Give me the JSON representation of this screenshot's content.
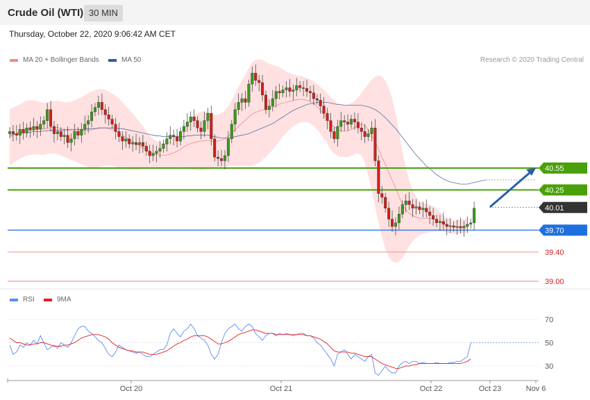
{
  "header": {
    "title": "Crude Oil (WTI)",
    "timeframe": "30 MIN"
  },
  "date_text": "Thursday, October 22, 2020 9:06:42 AM CET",
  "copyright": "Research © 2020 Trading Central",
  "colors": {
    "support_resistance_green": "#4aa00a",
    "current_price": "#333333",
    "pivot_blue": "#1f6fe0",
    "red_level": "#f29a9a",
    "bollinger_fill": "#ffd9d9",
    "ma20": "#f08a8a",
    "ma50": "#5a6fa8",
    "rsi": "#5b8def",
    "rsi_ma": "#e02020",
    "candle_up": "#3a9a1a",
    "candle_down": "#d0201a",
    "arrow": "#2a5ea8"
  },
  "chart_data": [
    {
      "type": "candlestick",
      "title": "Crude Oil (WTI)",
      "legend": [
        {
          "name": "MA 20 + Bollinger Bands",
          "color": "#f08a8a"
        },
        {
          "name": "MA 50",
          "color": "#2a5ea8"
        }
      ],
      "x_ticks": [
        "Oct 20",
        "Oct 21",
        "Oct 22",
        "Oct 23",
        "Nov 6"
      ],
      "ylim": [
        38.8,
        42.2
      ],
      "levels": [
        {
          "label": "40.55",
          "value": 40.55,
          "kind": "resistance"
        },
        {
          "label": "40.25",
          "value": 40.25,
          "kind": "resistance"
        },
        {
          "label": "40.01",
          "value": 40.01,
          "kind": "current"
        },
        {
          "label": "39.70",
          "value": 39.7,
          "kind": "pivot"
        },
        {
          "label": "39.40",
          "value": 39.4,
          "kind": "support"
        },
        {
          "label": "39.00",
          "value": 39.0,
          "kind": "support"
        }
      ],
      "close": [
        41.05,
        41.02,
        41.0,
        41.08,
        41.03,
        41.1,
        41.07,
        41.12,
        41.08,
        41.15,
        41.2,
        41.35,
        41.12,
        41.02,
        41.05,
        40.98,
        41.0,
        40.9,
        40.95,
        41.05,
        41.0,
        41.08,
        41.15,
        41.2,
        41.32,
        41.38,
        41.45,
        41.35,
        41.28,
        41.22,
        41.15,
        41.05,
        40.98,
        40.92,
        40.95,
        40.88,
        40.9,
        40.87,
        40.9,
        40.85,
        40.78,
        40.72,
        40.75,
        40.78,
        40.82,
        40.88,
        40.95,
        41.0,
        40.98,
        40.92,
        41.05,
        41.12,
        41.18,
        41.25,
        41.2,
        41.1,
        41.05,
        41.2,
        41.3,
        40.95,
        40.7,
        40.68,
        40.65,
        40.72,
        40.95,
        41.15,
        41.35,
        41.45,
        41.5,
        41.45,
        41.7,
        41.85,
        41.75,
        41.72,
        41.55,
        41.35,
        41.4,
        41.5,
        41.6,
        41.58,
        41.62,
        41.65,
        41.6,
        41.62,
        41.68,
        41.65,
        41.64,
        41.6,
        41.58,
        41.5,
        41.48,
        41.4,
        41.3,
        41.2,
        41.05,
        40.95,
        41.12,
        41.2,
        41.18,
        41.15,
        41.22,
        41.18,
        41.1,
        41.05,
        40.98,
        41.02,
        41.1,
        40.65,
        40.2,
        40.15,
        40.0,
        39.85,
        39.75,
        39.8,
        39.92,
        40.05,
        40.1,
        40.05,
        40.0,
        40.02,
        39.98,
        40.0,
        39.95,
        39.9,
        39.85,
        39.8,
        39.82,
        39.78,
        39.75,
        39.76,
        39.74,
        39.75,
        39.73,
        39.75,
        39.78,
        39.8,
        40.0
      ],
      "ma20_upper": [
        41.35,
        41.38,
        41.4,
        41.42,
        41.45,
        41.47,
        41.48,
        41.48,
        41.47,
        41.45,
        41.44,
        41.45,
        41.46,
        41.47,
        41.47,
        41.46,
        41.45,
        41.45,
        41.46,
        41.48,
        41.5,
        41.52,
        41.55,
        41.58,
        41.6,
        41.62,
        41.63,
        41.63,
        41.62,
        41.6,
        41.57,
        41.54,
        41.5,
        41.45,
        41.4,
        41.35,
        41.3,
        41.24,
        41.18,
        41.12,
        41.06,
        41.0,
        40.95,
        40.92,
        40.9,
        40.9,
        40.91,
        40.93,
        40.96,
        41.0,
        41.05,
        41.12,
        41.18,
        41.23,
        41.27,
        41.3,
        41.32,
        41.33,
        41.32,
        41.3,
        41.28,
        41.28,
        41.3,
        41.34,
        41.4,
        41.48,
        41.57,
        41.66,
        41.75,
        41.83,
        41.92,
        42.0,
        42.03,
        42.04,
        42.03,
        42.0,
        41.98,
        41.96,
        41.95,
        41.93,
        41.9,
        41.87,
        41.85,
        41.83,
        41.82,
        41.81,
        41.8,
        41.78,
        41.76,
        41.74,
        41.7,
        41.66,
        41.62,
        41.57,
        41.52,
        41.48,
        41.44,
        41.42,
        41.41,
        41.42,
        41.44,
        41.47,
        41.52,
        41.58,
        41.64,
        41.7,
        41.76,
        41.8,
        41.82,
        41.8,
        41.75,
        41.65,
        41.5,
        41.3,
        41.05,
        40.78,
        40.55,
        40.38,
        40.25,
        40.15,
        40.1,
        40.07,
        40.06,
        40.05,
        40.03,
        40.0,
        39.95,
        39.9,
        39.87,
        39.85,
        39.84,
        39.84,
        39.84,
        39.85,
        39.86
      ],
      "ma20_lower": [
        40.58,
        40.62,
        40.65,
        40.68,
        40.7,
        40.72,
        40.73,
        40.74,
        40.74,
        40.73,
        40.73,
        40.74,
        40.75,
        40.75,
        40.74,
        40.72,
        40.7,
        40.68,
        40.66,
        40.64,
        40.62,
        40.6,
        40.58,
        40.56,
        40.55,
        40.55,
        40.56,
        40.57,
        40.58,
        40.58,
        40.58,
        40.57,
        40.56,
        40.55,
        40.54,
        40.53,
        40.53,
        40.53,
        40.53,
        40.54,
        40.54,
        40.55,
        40.55,
        40.55,
        40.55,
        40.55,
        40.55,
        40.55,
        40.56,
        40.56,
        40.56,
        40.56,
        40.55,
        40.54,
        40.53,
        40.52,
        40.52,
        40.52,
        40.53,
        40.54,
        40.55,
        40.56,
        40.56,
        40.57,
        40.57,
        40.58,
        40.58,
        40.58,
        40.58,
        40.58,
        40.58,
        40.58,
        40.6,
        40.62,
        40.66,
        40.7,
        40.75,
        40.8,
        40.86,
        40.92,
        40.98,
        41.03,
        41.08,
        41.12,
        41.15,
        41.17,
        41.18,
        41.18,
        41.16,
        41.13,
        41.08,
        41.02,
        40.95,
        40.88,
        40.8,
        40.75,
        40.72,
        40.7,
        40.7,
        40.7,
        40.72,
        40.74,
        40.75,
        40.72,
        40.62,
        40.45,
        40.25,
        40.02,
        39.8,
        39.6,
        39.45,
        39.33,
        39.27,
        39.25,
        39.27,
        39.32,
        39.4,
        39.48,
        39.55,
        39.6,
        39.63,
        39.65,
        39.66,
        39.67,
        39.68,
        39.68,
        39.68,
        39.68,
        39.67,
        39.66,
        39.65,
        39.65,
        39.65,
        39.66,
        39.68
      ],
      "ma50": [
        41.0,
        41.01,
        41.02,
        41.03,
        41.03,
        41.04,
        41.04,
        41.05,
        41.05,
        41.05,
        41.06,
        41.06,
        41.07,
        41.07,
        41.07,
        41.07,
        41.07,
        41.08,
        41.08,
        41.08,
        41.08,
        41.08,
        41.08,
        41.09,
        41.09,
        41.09,
        41.1,
        41.1,
        41.1,
        41.1,
        41.1,
        41.1,
        41.09,
        41.09,
        41.08,
        41.07,
        41.06,
        41.05,
        41.04,
        41.03,
        41.02,
        41.01,
        41.0,
        40.99,
        40.99,
        40.98,
        40.98,
        40.98,
        40.98,
        40.98,
        40.98,
        40.98,
        40.99,
        40.99,
        41.0,
        41.0,
        41.0,
        41.0,
        41.0,
        40.99,
        40.98,
        40.97,
        40.96,
        40.96,
        40.96,
        40.97,
        40.98,
        40.99,
        41.0,
        41.01,
        41.02,
        41.04,
        41.06,
        41.08,
        41.1,
        41.12,
        41.14,
        41.16,
        41.19,
        41.22,
        41.25,
        41.28,
        41.31,
        41.34,
        41.36,
        41.38,
        41.4,
        41.42,
        41.43,
        41.44,
        41.45,
        41.45,
        41.45,
        41.45,
        41.44,
        41.43,
        41.42,
        41.42,
        41.41,
        41.41,
        41.41,
        41.41,
        41.41,
        41.41,
        41.4,
        41.39,
        41.37,
        41.35,
        41.32,
        41.28,
        41.24,
        41.19,
        41.14,
        41.09,
        41.03,
        40.97,
        40.91,
        40.85,
        40.79,
        40.73,
        40.68,
        40.63,
        40.58,
        40.54,
        40.5,
        40.46,
        40.43,
        40.4,
        40.38,
        40.36,
        40.35,
        40.34,
        40.33,
        40.33,
        40.33
      ]
    },
    {
      "type": "line",
      "title": "RSI",
      "series": [
        {
          "name": "RSI",
          "color": "#5b8def"
        },
        {
          "name": "9MA",
          "color": "#e02020"
        }
      ],
      "y_ticks": [
        70,
        50,
        30
      ],
      "ylim": [
        20,
        80
      ],
      "rsi": [
        48,
        40,
        42,
        48,
        46,
        50,
        48,
        52,
        49,
        56,
        50,
        44,
        46,
        48,
        45,
        50,
        48,
        46,
        50,
        56,
        62,
        64,
        64,
        60,
        58,
        55,
        52,
        50,
        45,
        40,
        38,
        42,
        48,
        46,
        44,
        43,
        42,
        41,
        42,
        40,
        38,
        38,
        40,
        42,
        44,
        44,
        48,
        58,
        62,
        58,
        55,
        60,
        62,
        66,
        62,
        56,
        54,
        52,
        48,
        40,
        36,
        40,
        50,
        58,
        62,
        64,
        66,
        62,
        60,
        64,
        66,
        64,
        58,
        55,
        52,
        56,
        58,
        58,
        56,
        58,
        57,
        58,
        57,
        56,
        57,
        58,
        58,
        56,
        56,
        54,
        50,
        48,
        44,
        40,
        36,
        30,
        40,
        42,
        44,
        40,
        36,
        40,
        38,
        36,
        34,
        38,
        40,
        24,
        22,
        26,
        30,
        26,
        24,
        24,
        30,
        33,
        34,
        32,
        34,
        34,
        32,
        33,
        32,
        32,
        32,
        33,
        32,
        32,
        32,
        33,
        33,
        34,
        34,
        36,
        38,
        50
      ],
      "rsi_ma": [
        54,
        52,
        50,
        50,
        49,
        48,
        48,
        49,
        49,
        50,
        50,
        49,
        48,
        47,
        47,
        47,
        48,
        48,
        49,
        50,
        52,
        54,
        55,
        56,
        57,
        57,
        57,
        56,
        55,
        53,
        50,
        48,
        46,
        45,
        44,
        43,
        43,
        42,
        42,
        42,
        41,
        40,
        40,
        40,
        41,
        42,
        43,
        45,
        47,
        49,
        50,
        52,
        53,
        55,
        56,
        56,
        56,
        56,
        55,
        53,
        51,
        49,
        49,
        50,
        51,
        53,
        55,
        57,
        58,
        59,
        60,
        61,
        61,
        60,
        59,
        58,
        58,
        58,
        57,
        57,
        57,
        57,
        57,
        57,
        57,
        57,
        57,
        56,
        56,
        55,
        54,
        53,
        51,
        49,
        46,
        43,
        42,
        42,
        42,
        42,
        41,
        41,
        40,
        39,
        38,
        38,
        38,
        36,
        34,
        32,
        31,
        30,
        29,
        28,
        28,
        29,
        30,
        30,
        31,
        31,
        32,
        32,
        32,
        32,
        32,
        32,
        32,
        32,
        32,
        32,
        32,
        32,
        32,
        33,
        34,
        36
      ]
    }
  ]
}
